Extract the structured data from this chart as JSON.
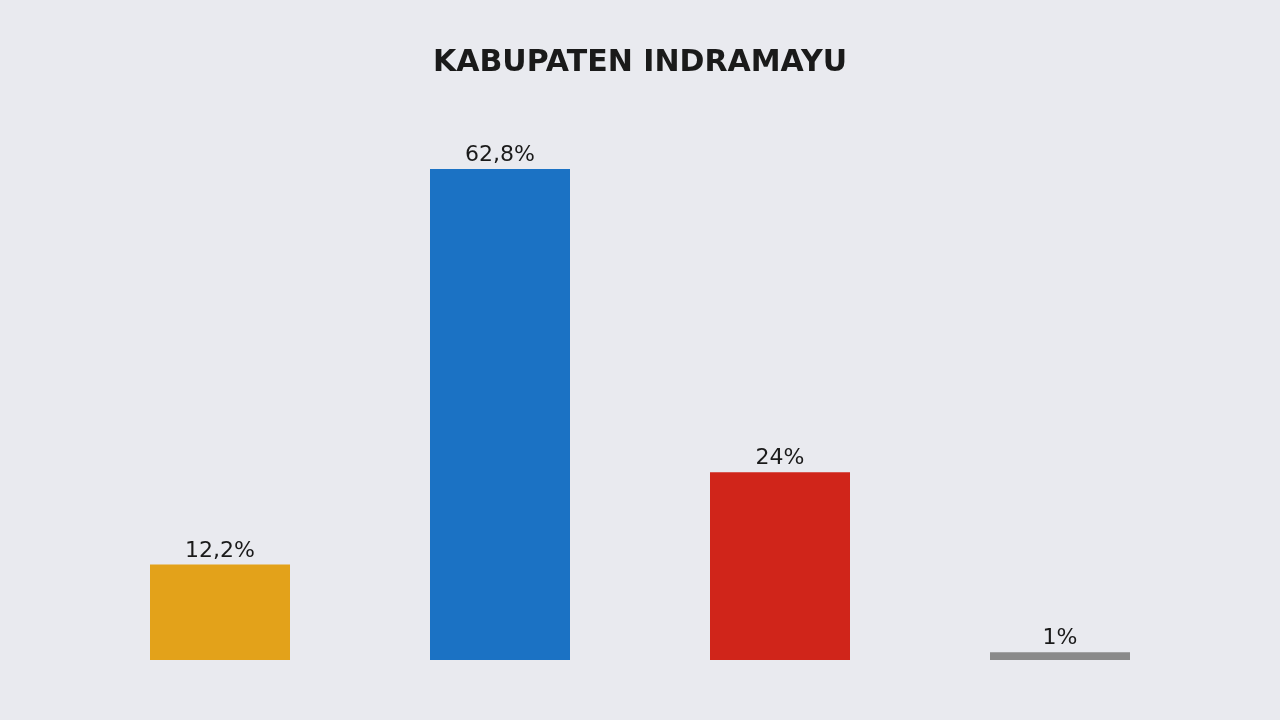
{
  "chart_data": {
    "type": "bar",
    "title": "KABUPATEN INDRAMAYU",
    "categories": [
      null,
      null,
      null,
      null
    ],
    "values": [
      12.2,
      62.8,
      24,
      1
    ],
    "colors": [
      "#e3a21a",
      "#1b72c4",
      "#d0251a",
      "#8a8a8a"
    ],
    "value_labels": [
      "12,2%",
      "62,8%",
      "24%",
      "1%"
    ],
    "legend": false
  }
}
